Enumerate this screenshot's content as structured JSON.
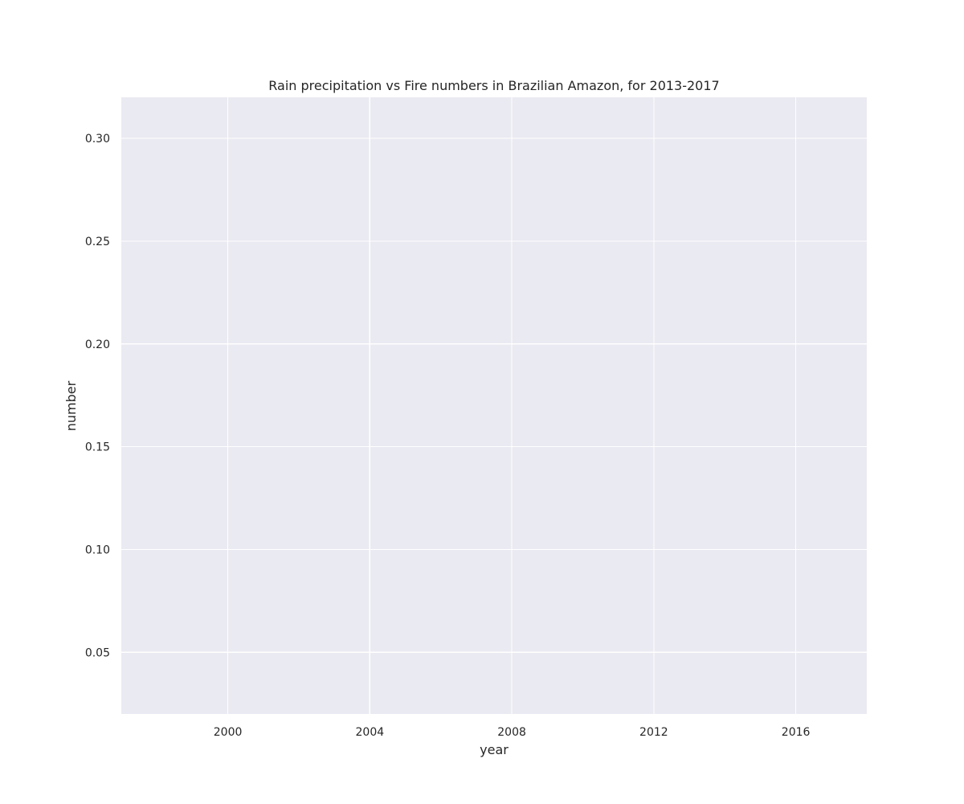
{
  "chart_data": {
    "type": "line",
    "title": "Rain precipitation vs Fire numbers in Brazilian Amazon, for 2013-2017",
    "xlabel": "year",
    "ylabel": "number",
    "xlim": [
      1997,
      2018
    ],
    "ylim": [
      0.02,
      0.32
    ],
    "xticks": [
      2000,
      2004,
      2008,
      2012,
      2016
    ],
    "xtick_labels": [
      "2000",
      "2004",
      "2008",
      "2012",
      "2016"
    ],
    "yticks": [
      0.05,
      0.1,
      0.15,
      0.2,
      0.25,
      0.3
    ],
    "ytick_labels": [
      "0.05",
      "0.10",
      "0.15",
      "0.20",
      "0.25",
      "0.30"
    ],
    "grid": true,
    "series": []
  },
  "colors": {
    "plot_background": "#eaeaf2",
    "grid": "#ffffff",
    "text": "#262626"
  }
}
